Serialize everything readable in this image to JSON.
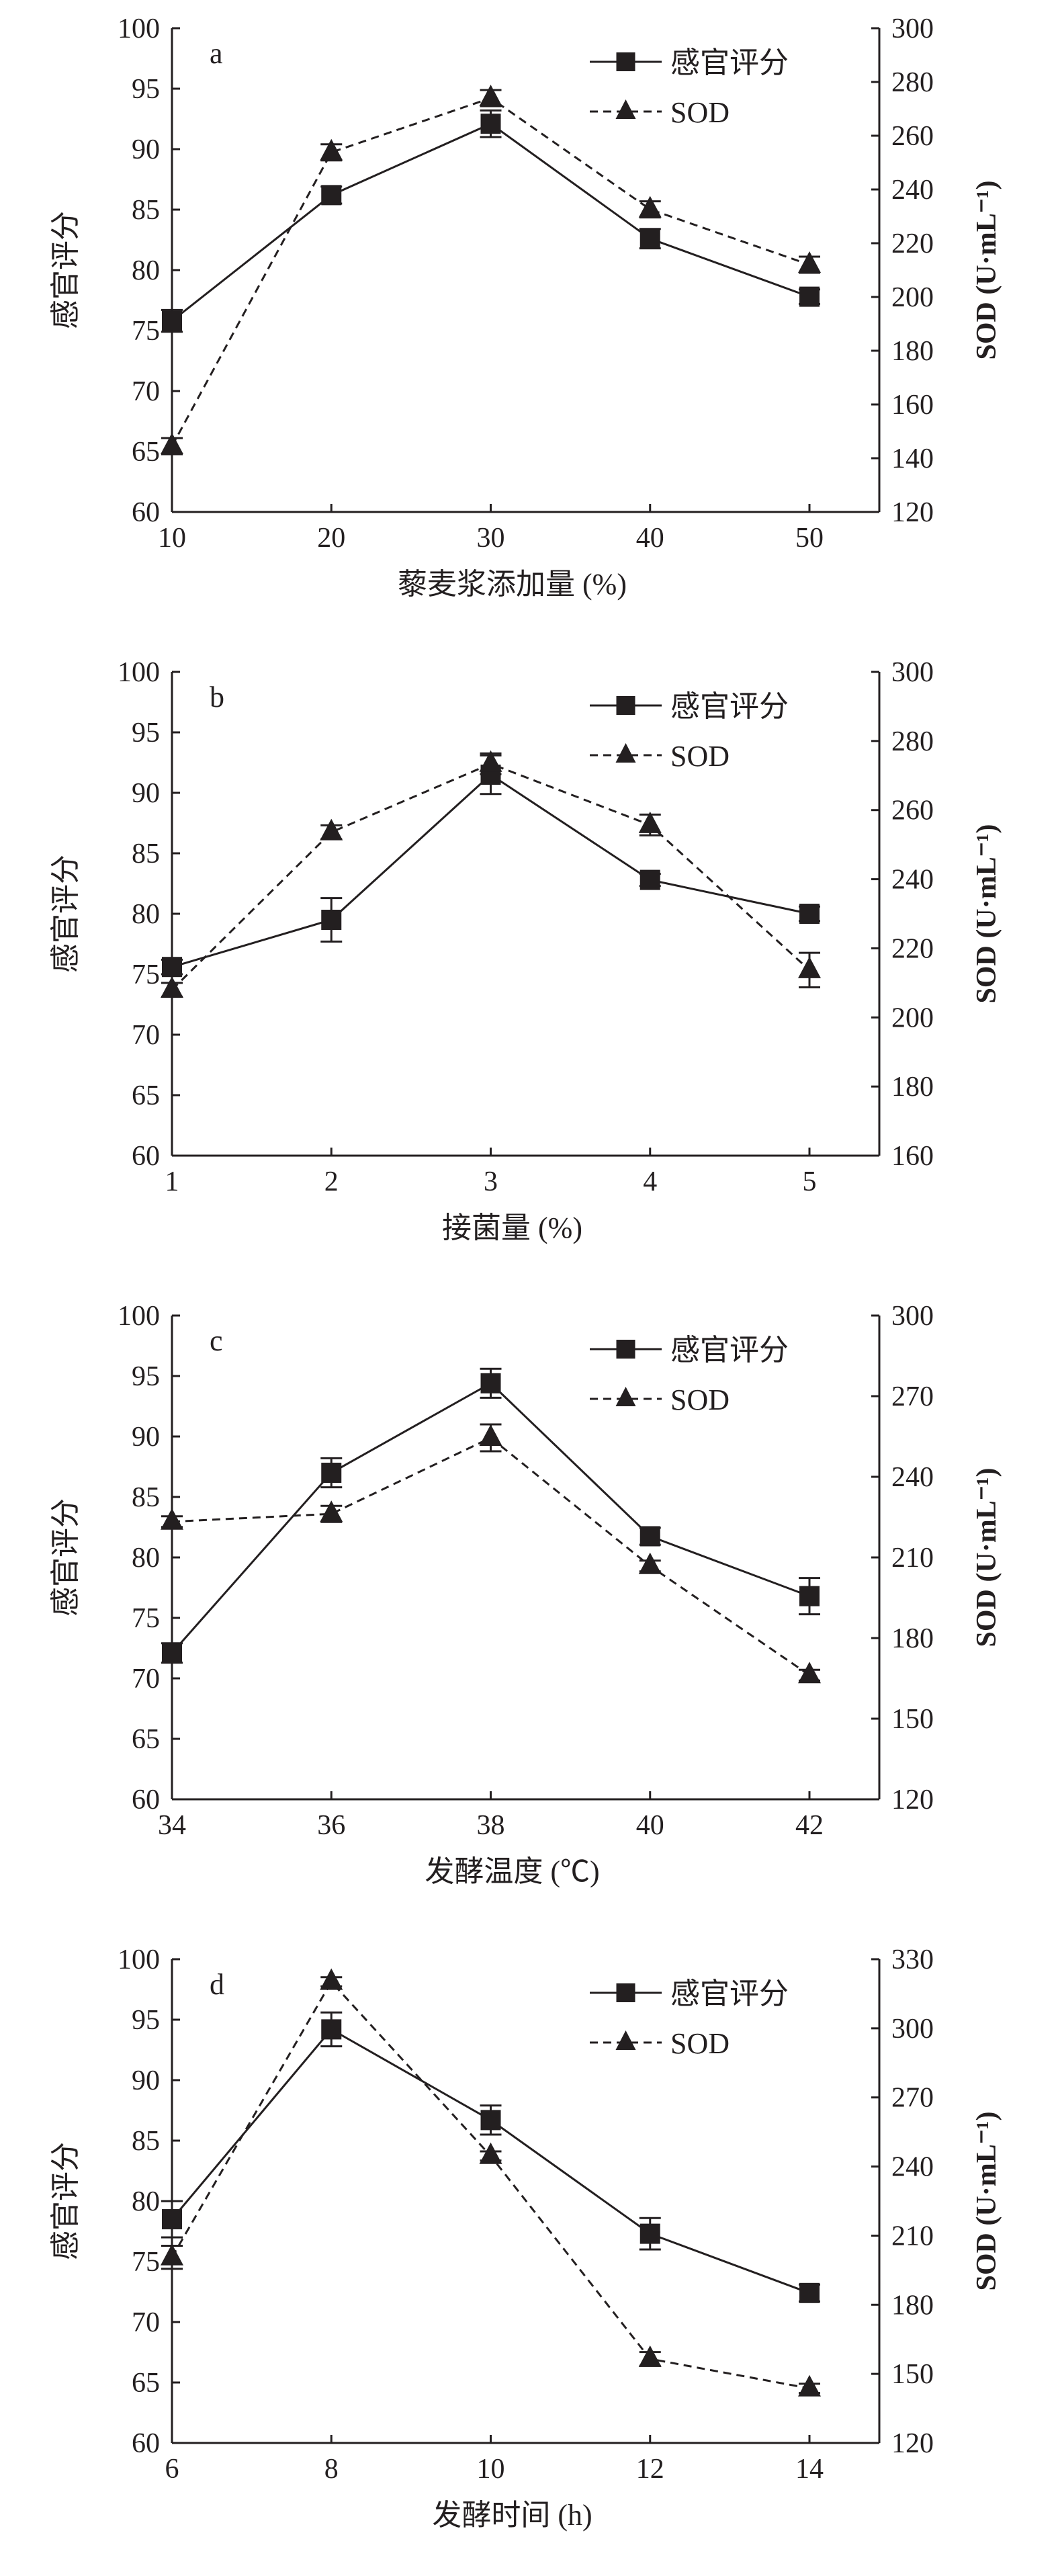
{
  "chart_data": [
    {
      "type": "line",
      "panel_label": "a",
      "xlabel": "藜麦浆添加量 (%)",
      "ylabel": "感官评分",
      "y2label": "SOD (U·mL⁻¹)",
      "x": [
        10,
        20,
        30,
        40,
        50
      ],
      "xticks": [
        10,
        20,
        30,
        40,
        50
      ],
      "ylim": [
        60,
        100
      ],
      "yticks": [
        60,
        65,
        70,
        75,
        80,
        85,
        90,
        95,
        100
      ],
      "y2lim": [
        120,
        300
      ],
      "y2ticks": [
        120,
        140,
        160,
        180,
        200,
        220,
        240,
        260,
        280,
        300
      ],
      "series": [
        {
          "name": "感官评分",
          "axis": "left",
          "marker": "square",
          "style": "solid",
          "values": [
            75.8,
            86.2,
            92.1,
            82.6,
            77.8
          ],
          "errors": [
            0.9,
            0.7,
            1.1,
            0.8,
            0.6
          ]
        },
        {
          "name": "SOD",
          "axis": "right",
          "marker": "triangle",
          "style": "dashed",
          "values": [
            144.5,
            253.8,
            274.0,
            232.6,
            212.0
          ],
          "errors": [
            3,
            3,
            3,
            3,
            3
          ]
        }
      ],
      "legend": "top-right"
    },
    {
      "type": "line",
      "panel_label": "b",
      "xlabel": "接菌量 (%)",
      "ylabel": "感官评分",
      "y2label": "SOD (U·mL⁻¹)",
      "x": [
        1,
        2,
        3,
        4,
        5
      ],
      "xticks": [
        1,
        2,
        3,
        4,
        5
      ],
      "ylim": [
        60,
        100
      ],
      "yticks": [
        60,
        65,
        70,
        75,
        80,
        85,
        90,
        95,
        100
      ],
      "y2lim": [
        160,
        300
      ],
      "y2ticks": [
        160,
        180,
        200,
        220,
        240,
        260,
        280,
        300
      ],
      "series": [
        {
          "name": "感官评分",
          "axis": "left",
          "marker": "square",
          "style": "solid",
          "values": [
            75.6,
            79.5,
            91.5,
            82.8,
            80.0
          ],
          "errors": [
            0.6,
            1.8,
            1.6,
            0.5,
            0.6
          ]
        },
        {
          "name": "SOD",
          "axis": "right",
          "marker": "triangle",
          "style": "dashed",
          "values": [
            208.0,
            253.6,
            273.4,
            255.7,
            213.7
          ],
          "errors": [
            2,
            2,
            3,
            3,
            5
          ]
        }
      ],
      "legend": "top-right"
    },
    {
      "type": "line",
      "panel_label": "c",
      "xlabel": "发酵温度 (℃)",
      "ylabel": "感官评分",
      "y2label": "SOD (U·mL⁻¹)",
      "x": [
        34,
        36,
        38,
        40,
        42
      ],
      "xticks": [
        34,
        36,
        38,
        40,
        42
      ],
      "ylim": [
        60,
        100
      ],
      "yticks": [
        60,
        65,
        70,
        75,
        80,
        85,
        90,
        95,
        100
      ],
      "y2lim": [
        120,
        300
      ],
      "y2ticks": [
        120,
        150,
        180,
        210,
        240,
        270,
        300
      ],
      "series": [
        {
          "name": "感官评分",
          "axis": "left",
          "marker": "square",
          "style": "solid",
          "values": [
            72.1,
            87.0,
            94.4,
            81.75,
            76.8
          ],
          "errors": [
            0.8,
            1.2,
            1.2,
            0.7,
            1.5
          ]
        },
        {
          "name": "SOD",
          "axis": "right",
          "marker": "triangle",
          "style": "dashed",
          "values": [
            223.3,
            226.2,
            254.5,
            206.8,
            166.2
          ],
          "errors": [
            2,
            3,
            5,
            2,
            2
          ]
        }
      ],
      "legend": "top-right"
    },
    {
      "type": "line",
      "panel_label": "d",
      "xlabel": "发酵时间 (h)",
      "ylabel": "感官评分",
      "y2label": "SOD (U·mL⁻¹)",
      "x": [
        6,
        8,
        10,
        12,
        14
      ],
      "xticks": [
        6,
        8,
        10,
        12,
        14
      ],
      "ylim": [
        60,
        100
      ],
      "yticks": [
        60,
        65,
        70,
        75,
        80,
        85,
        90,
        95,
        100
      ],
      "y2lim": [
        120,
        330
      ],
      "y2ticks": [
        120,
        150,
        180,
        210,
        240,
        270,
        300,
        330
      ],
      "series": [
        {
          "name": "感官评分",
          "axis": "left",
          "marker": "square",
          "style": "solid",
          "values": [
            78.5,
            94.2,
            86.7,
            77.3,
            72.4
          ],
          "errors": [
            1.5,
            1.4,
            1.2,
            1.3,
            0.7
          ]
        },
        {
          "name": "SOD",
          "axis": "right",
          "marker": "triangle",
          "style": "dashed",
          "values": [
            200.6,
            320.2,
            244.6,
            156.5,
            143.7
          ],
          "errors": [
            5,
            2,
            2,
            3,
            2
          ]
        }
      ],
      "legend": "top-right"
    }
  ]
}
